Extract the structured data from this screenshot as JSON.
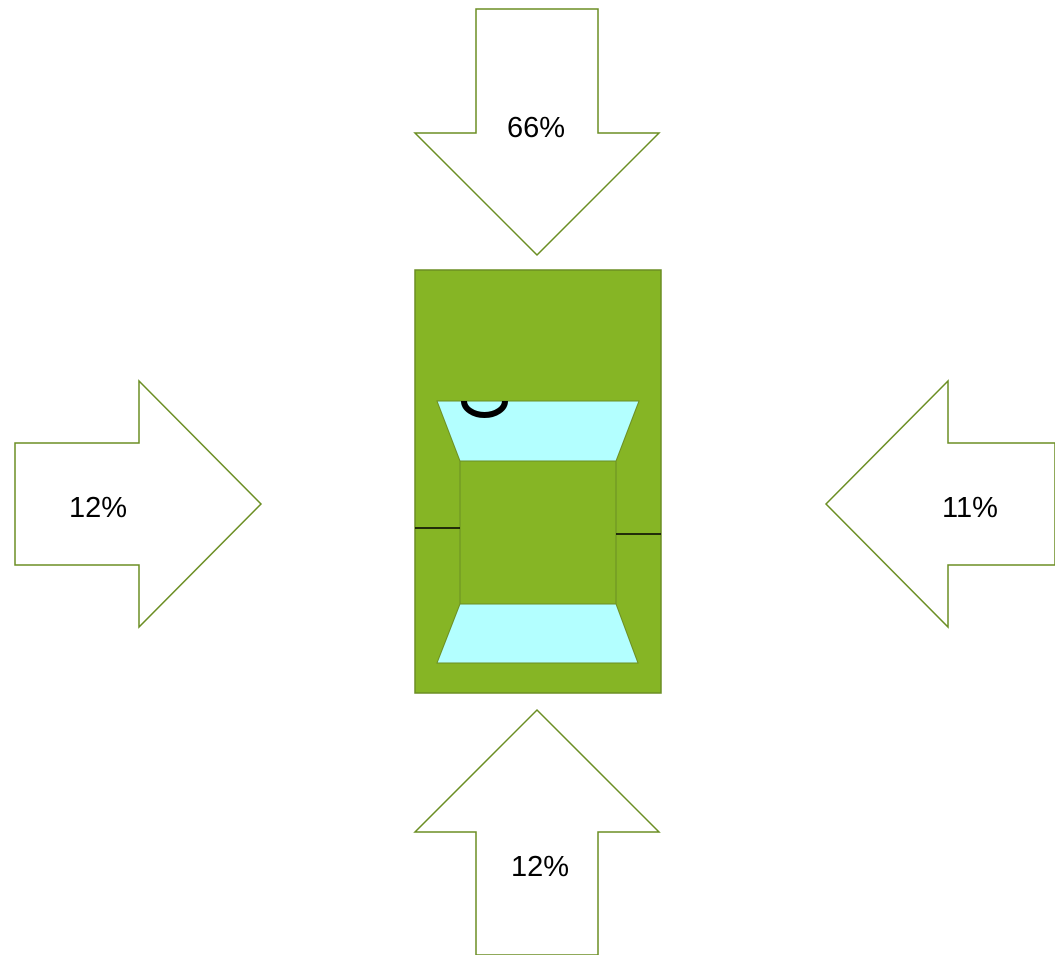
{
  "colors": {
    "arrow_outline": "#6b8e23",
    "car_body": "#86b525",
    "window_glass": "#b3ffff",
    "line": "#000000"
  },
  "arrows": {
    "top": {
      "direction": "down",
      "label": "66%"
    },
    "left": {
      "direction": "right",
      "label": "12%"
    },
    "right": {
      "direction": "left",
      "label": "11%"
    },
    "bottom": {
      "direction": "up",
      "label": "12%"
    }
  },
  "car": {
    "view": "top-down",
    "icons": [
      "car-body",
      "front-windshield",
      "rear-window",
      "roof",
      "steering-wheel-icon",
      "left-door-line",
      "right-door-line"
    ]
  }
}
